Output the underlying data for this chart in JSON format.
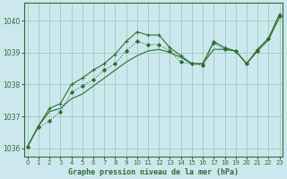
{
  "title": "Graphe pression niveau de la mer (hPa)",
  "bg_color": "#cce8ee",
  "grid_color": "#99ccbb",
  "line_color": "#2d6e2d",
  "xlim": [
    -0.3,
    23.3
  ],
  "ylim": [
    1035.75,
    1040.55
  ],
  "yticks": [
    1036,
    1037,
    1038,
    1039,
    1040
  ],
  "xticks": [
    0,
    1,
    2,
    3,
    4,
    5,
    6,
    7,
    8,
    9,
    10,
    11,
    12,
    13,
    14,
    15,
    16,
    17,
    18,
    19,
    20,
    21,
    22,
    23
  ],
  "series_dotted": [
    1036.05,
    1036.65,
    1036.85,
    1037.15,
    1037.75,
    1037.95,
    1038.15,
    1038.45,
    1038.65,
    1039.05,
    1039.35,
    1039.25,
    1039.25,
    1039.05,
    1038.7,
    1038.65,
    1038.6,
    1039.3,
    1039.1,
    1039.05,
    1038.65,
    1039.05,
    1039.45,
    1040.15
  ],
  "series_peak": [
    1036.05,
    1036.7,
    1037.25,
    1037.4,
    1038.0,
    1038.2,
    1038.45,
    1038.65,
    1038.95,
    1039.35,
    1039.65,
    1039.55,
    1039.55,
    1039.15,
    1038.9,
    1038.65,
    1038.65,
    1039.35,
    1039.15,
    1039.05,
    1038.65,
    1039.1,
    1039.45,
    1040.2
  ],
  "series_straight": [
    1036.05,
    1036.7,
    1037.15,
    1037.25,
    1037.55,
    1037.7,
    1037.95,
    1038.2,
    1038.45,
    1038.7,
    1038.9,
    1039.05,
    1039.1,
    1039.0,
    1038.85,
    1038.65,
    1038.65,
    1039.1,
    1039.1,
    1039.05,
    1038.65,
    1039.05,
    1039.4,
    1040.1
  ]
}
